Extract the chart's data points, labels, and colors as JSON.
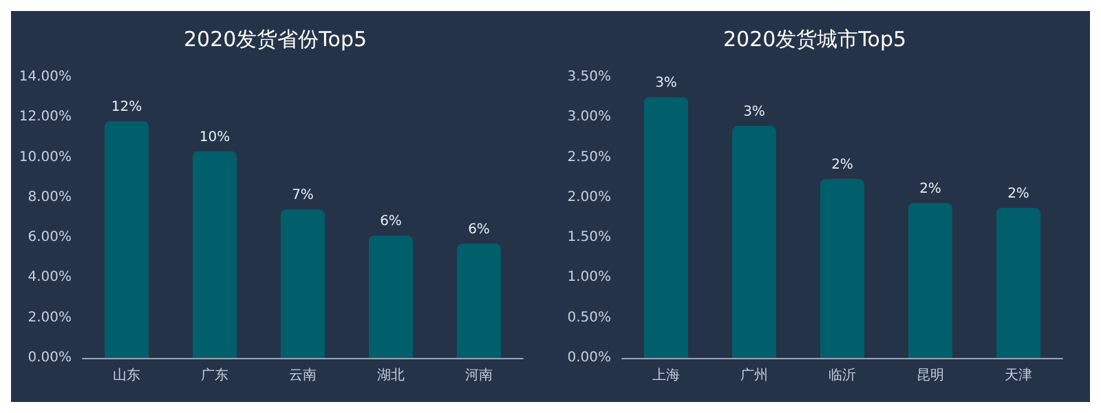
{
  "chart_data": [
    {
      "type": "bar",
      "title": "2020发货省份Top5",
      "categories": [
        "山东",
        "广东",
        "云南",
        "湖北",
        "河南"
      ],
      "values": [
        11.8,
        10.3,
        7.4,
        6.1,
        5.7
      ],
      "value_labels": [
        "12%",
        "10%",
        "7%",
        "6%",
        "6%"
      ],
      "color": "#005f6b",
      "ylim": [
        0,
        14
      ],
      "yticks": [
        {
          "value": 0,
          "label": "0.00%"
        },
        {
          "value": 2,
          "label": "2.00%"
        },
        {
          "value": 4,
          "label": "4.00%"
        },
        {
          "value": 6,
          "label": "6.00%"
        },
        {
          "value": 8,
          "label": "8.00%"
        },
        {
          "value": 10,
          "label": "10.00%"
        },
        {
          "value": 12,
          "label": "12.00%"
        },
        {
          "value": 14,
          "label": "14.00%"
        }
      ],
      "grid": false
    },
    {
      "type": "bar",
      "title": "2020发货城市Top5",
      "categories": [
        "上海",
        "广州",
        "临沂",
        "昆明",
        "天津"
      ],
      "values": [
        3.25,
        2.89,
        2.23,
        1.93,
        1.87
      ],
      "value_labels": [
        "3%",
        "3%",
        "2%",
        "2%",
        "2%"
      ],
      "color": "#005f6b",
      "ylim": [
        0,
        3.5
      ],
      "yticks": [
        {
          "value": 0,
          "label": "0.00%"
        },
        {
          "value": 0.5,
          "label": "0.50%"
        },
        {
          "value": 1,
          "label": "1.00%"
        },
        {
          "value": 1.5,
          "label": "1.50%"
        },
        {
          "value": 2,
          "label": "2.00%"
        },
        {
          "value": 2.5,
          "label": "2.50%"
        },
        {
          "value": 3,
          "label": "3.00%"
        },
        {
          "value": 3.5,
          "label": "3.50%"
        }
      ],
      "grid": false
    }
  ]
}
